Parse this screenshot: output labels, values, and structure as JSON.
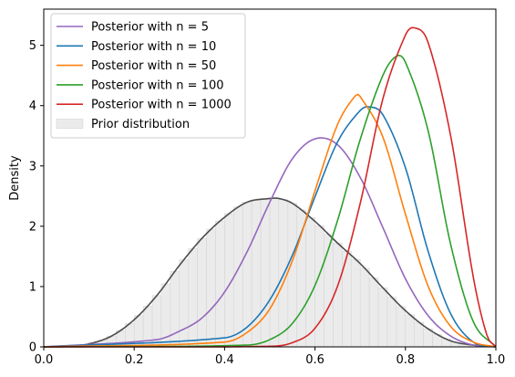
{
  "chart_data": {
    "type": "line",
    "title": "",
    "xlabel": "",
    "ylabel": "Density",
    "xlim": [
      0.0,
      1.0
    ],
    "ylim": [
      0,
      5.6
    ],
    "x_ticks": [
      0.0,
      0.2,
      0.4,
      0.6,
      0.8,
      1.0
    ],
    "x_tick_labels": [
      "0.0",
      "0.2",
      "0.4",
      "0.6",
      "0.8",
      "1.0"
    ],
    "y_ticks": [
      0,
      1,
      2,
      3,
      4,
      5
    ],
    "y_tick_labels": [
      "0",
      "1",
      "2",
      "3",
      "4",
      "5"
    ],
    "legend_position": "top-left",
    "series": [
      {
        "name": "Posterior with n = 5",
        "color": "#9467bd",
        "x": [
          0.0,
          0.25,
          0.3,
          0.35,
          0.4,
          0.45,
          0.5,
          0.55,
          0.6,
          0.65,
          0.7,
          0.75,
          0.8,
          0.85,
          0.9,
          0.95,
          1.0
        ],
        "values": [
          0.0,
          0.12,
          0.26,
          0.48,
          0.91,
          1.58,
          2.4,
          3.12,
          3.45,
          3.35,
          2.81,
          1.98,
          1.13,
          0.52,
          0.18,
          0.03,
          0.0
        ]
      },
      {
        "name": "Posterior with n = 10",
        "color": "#1f77b4",
        "x": [
          0.0,
          0.4,
          0.45,
          0.5,
          0.55,
          0.6,
          0.65,
          0.7,
          0.72,
          0.75,
          0.8,
          0.85,
          0.9,
          0.95,
          1.0
        ],
        "values": [
          0.0,
          0.15,
          0.33,
          0.78,
          1.52,
          2.49,
          3.4,
          3.92,
          3.98,
          3.85,
          2.97,
          1.59,
          0.55,
          0.08,
          0.0
        ]
      },
      {
        "name": "Posterior with n = 50",
        "color": "#ff7f0e",
        "x": [
          0.0,
          0.4,
          0.45,
          0.5,
          0.55,
          0.6,
          0.65,
          0.69,
          0.7,
          0.75,
          0.8,
          0.85,
          0.9,
          0.95,
          1.0
        ],
        "values": [
          0.0,
          0.08,
          0.24,
          0.63,
          1.43,
          2.59,
          3.69,
          4.17,
          4.15,
          3.48,
          2.2,
          1.01,
          0.34,
          0.08,
          0.0
        ]
      },
      {
        "name": "Posterior with n = 100",
        "color": "#2ca02c",
        "x": [
          0.0,
          0.45,
          0.5,
          0.55,
          0.6,
          0.65,
          0.7,
          0.75,
          0.78,
          0.8,
          0.85,
          0.9,
          0.95,
          1.0
        ],
        "values": [
          0.0,
          0.03,
          0.12,
          0.39,
          1.02,
          2.1,
          3.44,
          4.5,
          4.82,
          4.72,
          3.59,
          1.7,
          0.42,
          0.0
        ]
      },
      {
        "name": "Posterior with n = 1000",
        "color": "#d62728",
        "x": [
          0.0,
          0.5,
          0.55,
          0.6,
          0.65,
          0.7,
          0.75,
          0.8,
          0.82,
          0.85,
          0.9,
          0.95,
          0.98,
          1.0
        ],
        "values": [
          0.0,
          0.01,
          0.07,
          0.31,
          1.01,
          2.38,
          4.11,
          5.17,
          5.29,
          5.05,
          3.5,
          1.16,
          0.2,
          0.0
        ]
      }
    ],
    "prior": {
      "name": "Prior distribution",
      "line_color": "#4d4d4d",
      "bar_color": "#ebebeb",
      "x": [
        0.0,
        0.05,
        0.1,
        0.15,
        0.2,
        0.25,
        0.3,
        0.35,
        0.4,
        0.45,
        0.5,
        0.52,
        0.55,
        0.6,
        0.65,
        0.7,
        0.75,
        0.8,
        0.85,
        0.9,
        0.95,
        1.0
      ],
      "values": [
        0.0,
        0.005,
        0.05,
        0.18,
        0.45,
        0.85,
        1.35,
        1.8,
        2.15,
        2.4,
        2.46,
        2.46,
        2.38,
        2.08,
        1.72,
        1.38,
        0.98,
        0.6,
        0.3,
        0.1,
        0.03,
        0.0
      ]
    }
  }
}
